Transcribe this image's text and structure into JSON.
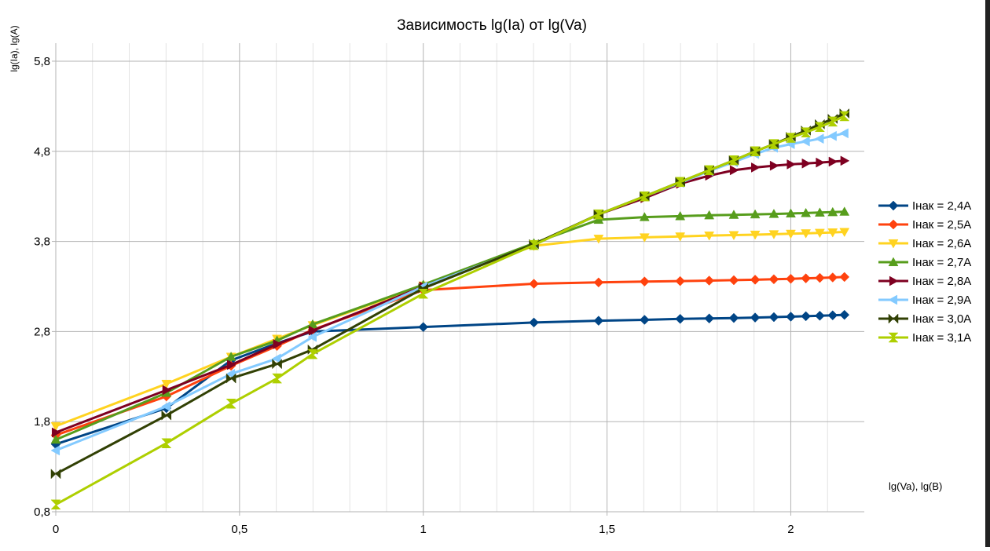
{
  "chart_data": {
    "type": "line",
    "title": "Зависимость lg(Ia) от lg(Va)",
    "ylabel": "lg(Ia), lg(A)",
    "xlabel": "lg(Va), lg(B)",
    "xlim": [
      0,
      2.2
    ],
    "ylim": [
      0.8,
      6.0
    ],
    "xticks": [
      "0",
      "0,5",
      "1",
      "1,5",
      "2"
    ],
    "xtick_values": [
      0,
      0.5,
      1,
      1.5,
      2
    ],
    "yticks": [
      "0,8",
      "1,8",
      "2,8",
      "3,8",
      "4,8",
      "5,8"
    ],
    "ytick_values": [
      0.8,
      1.8,
      2.8,
      3.8,
      4.8,
      5.8
    ],
    "grid": true,
    "legend_position": "right",
    "x": [
      0,
      0.301,
      0.477,
      0.602,
      0.699,
      1.0,
      1.301,
      1.477,
      1.602,
      1.699,
      1.778,
      1.845,
      1.903,
      1.954,
      2.0,
      2.041,
      2.079,
      2.114,
      2.146
    ],
    "series": [
      {
        "name": "Iнак = 2,4A",
        "color": "#004586",
        "marker": "diamond",
        "values": [
          1.55,
          1.95,
          2.48,
          2.67,
          2.8,
          2.85,
          2.9,
          2.92,
          2.93,
          2.94,
          2.945,
          2.95,
          2.955,
          2.96,
          2.965,
          2.97,
          2.975,
          2.98,
          2.985
        ]
      },
      {
        "name": "Iнак = 2,5A",
        "color": "#ff420e",
        "marker": "diamond",
        "values": [
          1.65,
          2.08,
          2.42,
          2.64,
          2.82,
          3.26,
          3.33,
          3.345,
          3.355,
          3.36,
          3.365,
          3.37,
          3.375,
          3.38,
          3.385,
          3.39,
          3.395,
          3.4,
          3.405
        ]
      },
      {
        "name": "Iнак = 2,6A",
        "color": "#ffd320",
        "marker": "triangle-down",
        "values": [
          1.75,
          2.22,
          2.52,
          2.72,
          2.87,
          3.31,
          3.75,
          3.83,
          3.845,
          3.855,
          3.865,
          3.87,
          3.875,
          3.88,
          3.885,
          3.89,
          3.895,
          3.9,
          3.905
        ]
      },
      {
        "name": "Iнак = 2,7A",
        "color": "#579d1c",
        "marker": "triangle-up",
        "values": [
          1.6,
          2.12,
          2.52,
          2.7,
          2.88,
          3.32,
          3.78,
          4.04,
          4.07,
          4.08,
          4.09,
          4.095,
          4.1,
          4.105,
          4.11,
          4.115,
          4.12,
          4.125,
          4.13
        ]
      },
      {
        "name": "Iнак = 2,8A",
        "color": "#7e0021",
        "marker": "triangle-right",
        "values": [
          1.68,
          2.15,
          2.43,
          2.66,
          2.81,
          3.3,
          3.76,
          4.1,
          4.28,
          4.44,
          4.53,
          4.59,
          4.62,
          4.64,
          4.655,
          4.665,
          4.675,
          4.685,
          4.695
        ]
      },
      {
        "name": "Iнак = 2,9A",
        "color": "#83caff",
        "marker": "triangle-left",
        "values": [
          1.48,
          1.97,
          2.33,
          2.5,
          2.74,
          3.3,
          3.76,
          4.1,
          4.3,
          4.45,
          4.58,
          4.68,
          4.77,
          4.84,
          4.88,
          4.91,
          4.94,
          4.97,
          5.0
        ]
      },
      {
        "name": "Iнак = 3,0A",
        "color": "#314004",
        "marker": "bowtie",
        "values": [
          1.22,
          1.87,
          2.28,
          2.44,
          2.6,
          3.28,
          3.77,
          4.1,
          4.3,
          4.46,
          4.59,
          4.7,
          4.8,
          4.88,
          4.96,
          5.03,
          5.1,
          5.16,
          5.22
        ]
      },
      {
        "name": "Iнак = 3,1A",
        "color": "#aecf00",
        "marker": "hourglass",
        "values": [
          0.88,
          1.56,
          2.0,
          2.28,
          2.55,
          3.22,
          3.76,
          4.1,
          4.3,
          4.46,
          4.59,
          4.7,
          4.8,
          4.88,
          4.95,
          5.01,
          5.07,
          5.13,
          5.19
        ]
      }
    ]
  }
}
